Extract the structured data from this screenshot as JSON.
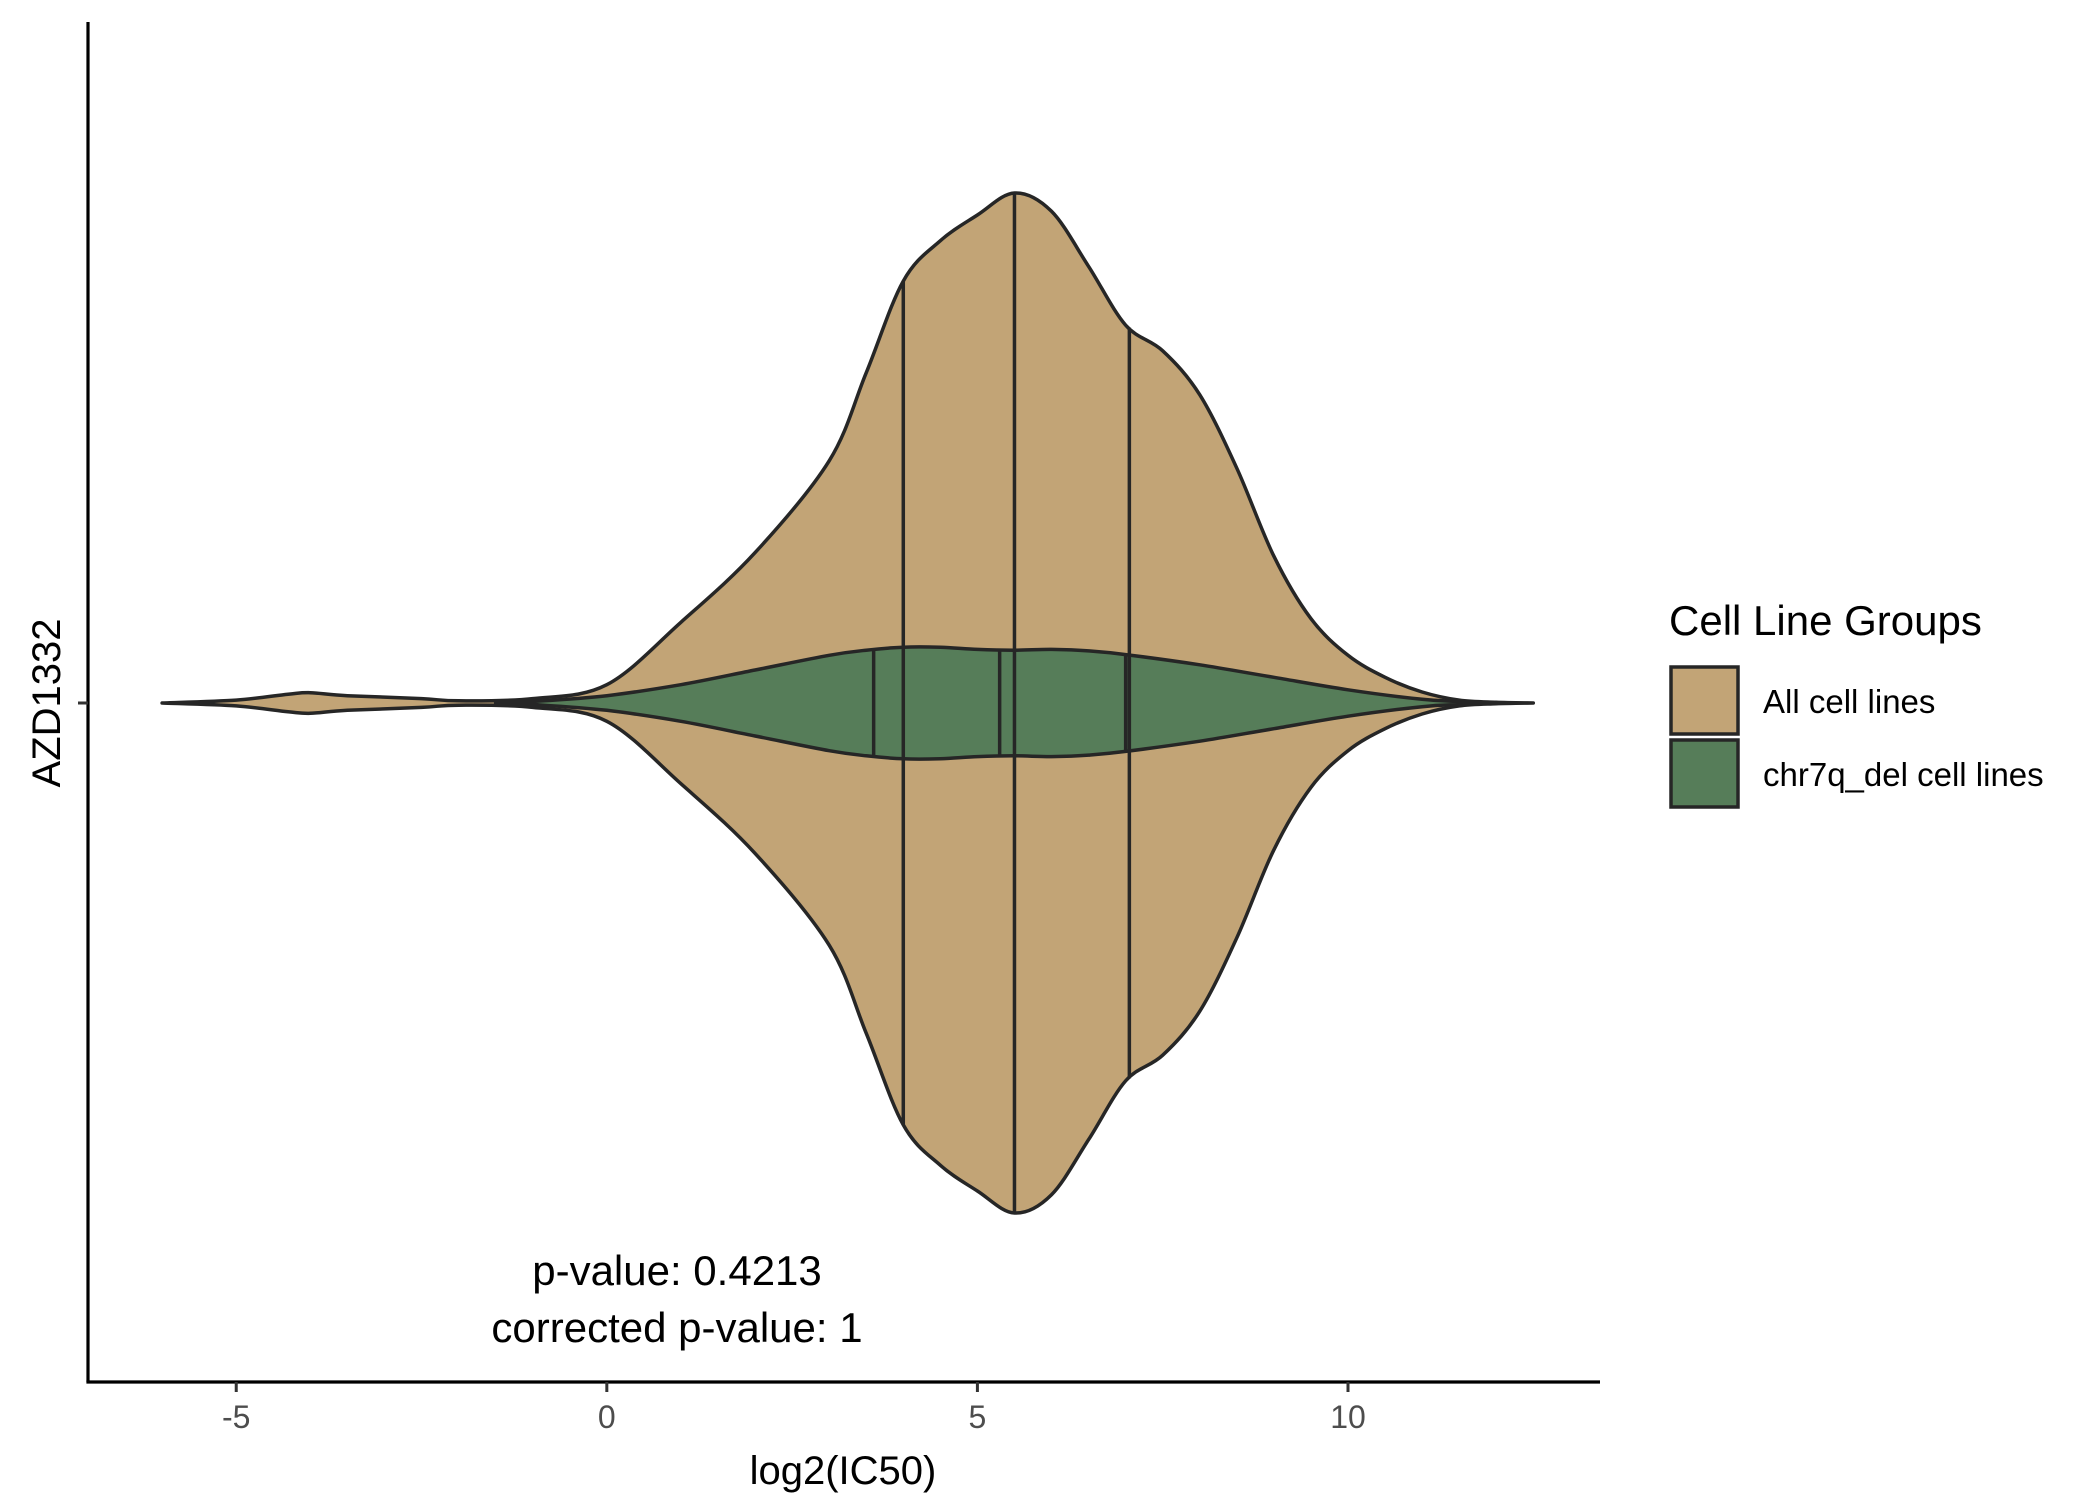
{
  "chart_data": {
    "type": "violin",
    "title": "",
    "xlabel": "log2(IC50)",
    "ylabel": "",
    "xlim": [
      -7,
      13.4
    ],
    "x_ticks": [
      -5,
      0,
      5,
      10
    ],
    "x_tick_labels": [
      "-5",
      "0",
      "5",
      "10"
    ],
    "y_category": "AZD1332",
    "grid": false,
    "annotations": [
      "p-value: 0.4213",
      "corrected p-value: 1"
    ],
    "annotation_anchor_x": 1,
    "legend": {
      "title": "Cell Line Groups",
      "position": "right",
      "entries": [
        "All cell lines",
        "chr7q_del cell lines"
      ]
    },
    "series": [
      {
        "name": "All cell lines",
        "color": "#C2A476",
        "quantiles": [
          4.0,
          5.5,
          7.05
        ],
        "density": [
          [
            -6.0,
            0.0
          ],
          [
            -5.0,
            0.004
          ],
          [
            -4.3,
            0.012
          ],
          [
            -4.0,
            0.014
          ],
          [
            -3.5,
            0.01
          ],
          [
            -2.5,
            0.006
          ],
          [
            -2.0,
            0.003
          ],
          [
            -1.0,
            0.006
          ],
          [
            0.0,
            0.025
          ],
          [
            1.0,
            0.11
          ],
          [
            2.0,
            0.205
          ],
          [
            3.0,
            0.33
          ],
          [
            3.5,
            0.45
          ],
          [
            4.0,
            0.575
          ],
          [
            4.5,
            0.63
          ],
          [
            5.0,
            0.665
          ],
          [
            5.5,
            0.695
          ],
          [
            6.0,
            0.67
          ],
          [
            6.5,
            0.595
          ],
          [
            7.0,
            0.515
          ],
          [
            7.5,
            0.48
          ],
          [
            8.0,
            0.42
          ],
          [
            8.5,
            0.32
          ],
          [
            9.0,
            0.2
          ],
          [
            9.5,
            0.115
          ],
          [
            10.0,
            0.065
          ],
          [
            10.5,
            0.035
          ],
          [
            11.0,
            0.015
          ],
          [
            11.5,
            0.004
          ],
          [
            12.0,
            0.001
          ],
          [
            12.5,
            0.0
          ]
        ]
      },
      {
        "name": "chr7q_del cell lines",
        "color": "#567D59",
        "quantiles": [
          3.6,
          5.3,
          7.0
        ],
        "density": [
          [
            -1.5,
            0.0
          ],
          [
            -1.0,
            0.002
          ],
          [
            0.0,
            0.01
          ],
          [
            1.0,
            0.025
          ],
          [
            2.0,
            0.045
          ],
          [
            3.0,
            0.065
          ],
          [
            3.5,
            0.072
          ],
          [
            4.0,
            0.076
          ],
          [
            4.5,
            0.076
          ],
          [
            5.0,
            0.073
          ],
          [
            5.5,
            0.072
          ],
          [
            6.0,
            0.073
          ],
          [
            6.5,
            0.071
          ],
          [
            7.0,
            0.066
          ],
          [
            8.0,
            0.052
          ],
          [
            9.0,
            0.035
          ],
          [
            10.0,
            0.018
          ],
          [
            11.0,
            0.005
          ],
          [
            11.5,
            0.002
          ],
          [
            12.0,
            0.0
          ]
        ]
      }
    ]
  }
}
